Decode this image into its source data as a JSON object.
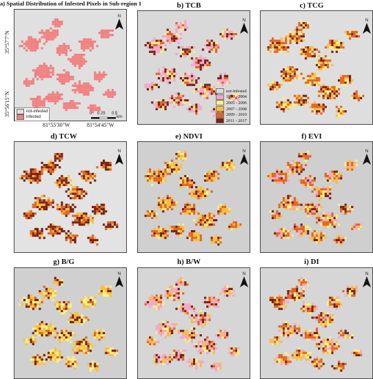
{
  "panels": [
    {
      "id": "a",
      "title": "a) Spatial Distribution of Infested Pixels in Sub-region 1"
    },
    {
      "id": "b",
      "title": "b) TCB"
    },
    {
      "id": "c",
      "title": "c) TCG"
    },
    {
      "id": "d",
      "title": "d) TCW"
    },
    {
      "id": "e",
      "title": "e) NDVI"
    },
    {
      "id": "f",
      "title": "f) EVI"
    },
    {
      "id": "g",
      "title": "g) B/G"
    },
    {
      "id": "h",
      "title": "h) B/W"
    },
    {
      "id": "i",
      "title": "i) DI"
    }
  ],
  "coords": {
    "lat_top": "35°57'7\"N",
    "lat_bottom": "35°56'15\"N",
    "lon_left": "81°55'30\"W",
    "lon_right": "81°54'45\"W"
  },
  "legend_a": [
    {
      "label": "not-infested",
      "color": "#e0e0e0"
    },
    {
      "label": "infested",
      "color": "#f28080"
    }
  ],
  "legend_b": [
    {
      "label": "not-infested",
      "color": "#d9d9d9"
    },
    {
      "label": "1990 - 2004",
      "color": "#f4a6c8"
    },
    {
      "label": "2005 - 2006",
      "color": "#fbf27a"
    },
    {
      "label": "2007 - 2008",
      "color": "#f9bf3b"
    },
    {
      "label": "2009 - 2010",
      "color": "#e3641d"
    },
    {
      "label": "2011 - 2017",
      "color": "#7a1f10"
    }
  ],
  "scalebar": {
    "ticks": [
      "0",
      "0.25",
      "0.5"
    ],
    "unit": "km"
  },
  "north_label": "N",
  "colors": {
    "background_map": "#d4d4d4",
    "infested": "#f28080"
  }
}
